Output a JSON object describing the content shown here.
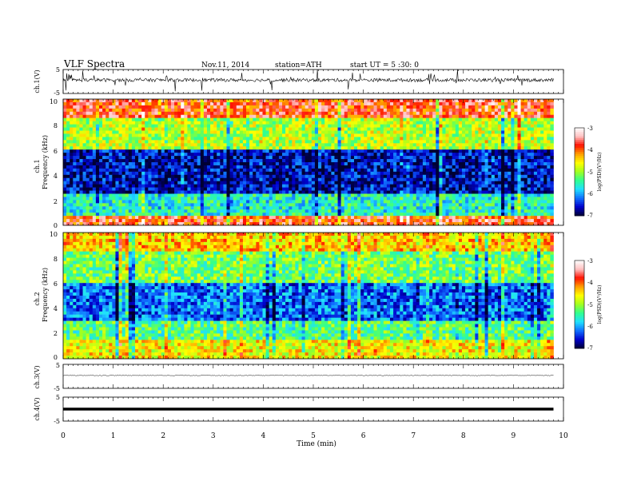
{
  "header": {
    "title": "VLF  Spectra",
    "date": "Nov.11, 2014",
    "station": "station=ATH",
    "start": "start  UT  =   5  :30: 0"
  },
  "chart_data": [
    {
      "panel": "ch1-waveform",
      "type": "line",
      "ylabel": "ch.1(V)",
      "ylim": [
        -5,
        5
      ],
      "yticks": [
        "5",
        "-5"
      ],
      "xlim": [
        0,
        10
      ],
      "data_extent_min": 9.8,
      "baseline": 0.6,
      "noise": "bursty",
      "colors": {
        "line": "#000000"
      }
    },
    {
      "panel": "ch1-spectrogram",
      "type": "heatmap",
      "ylabel_top": "ch.1",
      "ylabel": "Frequency  (kHz)",
      "ylim": [
        0,
        10
      ],
      "yticks": [
        "0",
        "2",
        "4",
        "6",
        "8",
        "10"
      ],
      "xlim": [
        0,
        10
      ],
      "data_extent_min": 9.8,
      "colorbar": {
        "label": "log(PSD)(V²/Hz)",
        "range": [
          -7,
          -3
        ],
        "ticks": [
          "-3",
          "-4",
          "-5",
          "-6",
          "-7"
        ],
        "colors": [
          "#000033",
          "#0000cc",
          "#1070ff",
          "#20e0ff",
          "#30ff90",
          "#a0ff20",
          "#ffff00",
          "#ffa000",
          "#ff1000",
          "#ffc0c0",
          "#ffffff"
        ]
      },
      "bands": [
        {
          "from_khz": 0.0,
          "to_khz": 0.8,
          "level": -3.8
        },
        {
          "from_khz": 0.8,
          "to_khz": 2.5,
          "level": -5.6
        },
        {
          "from_khz": 2.5,
          "to_khz": 6.0,
          "level": -6.6
        },
        {
          "from_khz": 6.0,
          "to_khz": 8.5,
          "level": -4.9
        },
        {
          "from_khz": 8.5,
          "to_khz": 10.0,
          "level": -3.8
        }
      ]
    },
    {
      "panel": "ch2-spectrogram",
      "type": "heatmap",
      "ylabel_top": "ch.2",
      "ylabel": "Frequency  (kHz)",
      "ylim": [
        0,
        10
      ],
      "yticks": [
        "0",
        "2",
        "4",
        "6",
        "8",
        "10"
      ],
      "xlim": [
        0,
        10
      ],
      "data_extent_min": 9.8,
      "colorbar": {
        "label": "log(PSD)(V²/Hz)",
        "range": [
          -7,
          -3
        ],
        "ticks": [
          "-3",
          "-4",
          "-5",
          "-6",
          "-7"
        ]
      },
      "bands": [
        {
          "from_khz": 0.0,
          "to_khz": 1.6,
          "level": -4.6
        },
        {
          "from_khz": 1.6,
          "to_khz": 3.0,
          "level": -5.3
        },
        {
          "from_khz": 3.0,
          "to_khz": 6.0,
          "level": -6.2
        },
        {
          "from_khz": 6.0,
          "to_khz": 8.5,
          "level": -5.2
        },
        {
          "from_khz": 8.5,
          "to_khz": 10.0,
          "level": -4.4
        }
      ]
    },
    {
      "panel": "ch3-waveform",
      "type": "line",
      "ylabel": "ch.3(V)",
      "ylim": [
        -5,
        5
      ],
      "yticks": [
        "5",
        "-5"
      ],
      "xlim": [
        0,
        10
      ],
      "data_extent_min": 9.8,
      "baseline": 0.4,
      "noise": "low",
      "colors": {
        "line": "#000000"
      }
    },
    {
      "panel": "ch4-waveform",
      "type": "line",
      "ylabel": "ch.4(V)",
      "ylim": [
        -5,
        5
      ],
      "yticks": [
        "5",
        "-5"
      ],
      "xlim": [
        0,
        10
      ],
      "data_extent_min": 9.8,
      "baseline": 0.0,
      "noise": "flat-thick",
      "colors": {
        "line": "#000000"
      }
    }
  ],
  "xaxis": {
    "label": "Time  (min)",
    "ticks": [
      "0",
      "1",
      "2",
      "3",
      "4",
      "5",
      "6",
      "7",
      "8",
      "9",
      "10"
    ],
    "range": [
      0,
      10
    ]
  }
}
